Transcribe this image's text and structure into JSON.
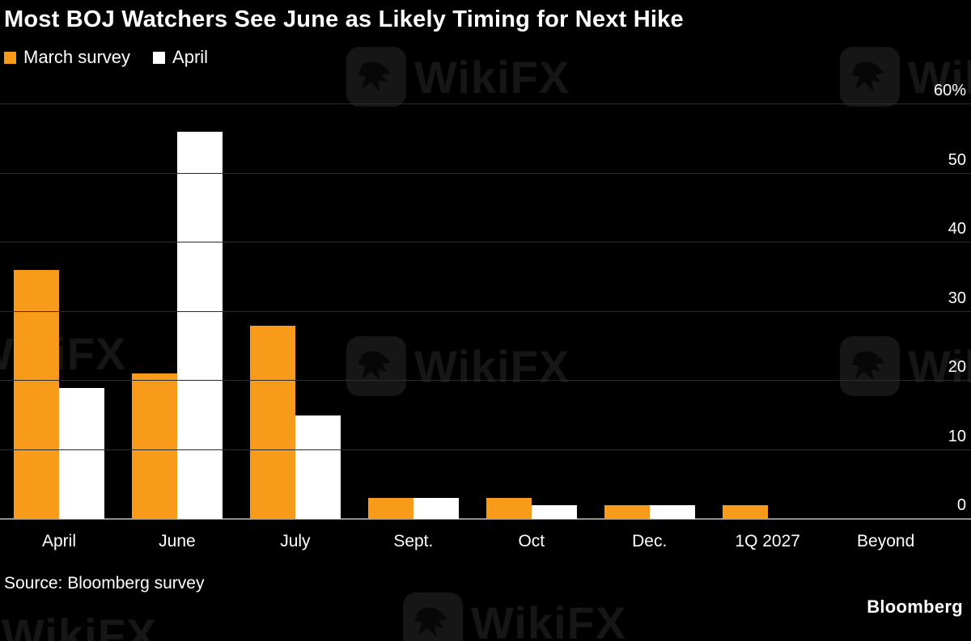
{
  "title": "Most BOJ Watchers See June as Likely Timing for Next Hike",
  "legend": [
    {
      "label": "March survey",
      "color": "#f89b1b"
    },
    {
      "label": "April",
      "color": "#ffffff"
    }
  ],
  "source": "Source: Bloomberg survey",
  "brand": "Bloomberg",
  "watermark_text": "WikiFX",
  "chart_data": {
    "type": "bar",
    "title": "Most BOJ Watchers See June as Likely Timing for Next Hike",
    "categories": [
      "April",
      "June",
      "July",
      "Sept.",
      "Oct",
      "Dec.",
      "1Q 2027",
      "Beyond"
    ],
    "series": [
      {
        "name": "March survey",
        "color": "#f89b1b",
        "values": [
          36,
          21,
          28,
          3,
          3,
          2,
          2,
          0
        ]
      },
      {
        "name": "April",
        "color": "#ffffff",
        "values": [
          19,
          56,
          15,
          3,
          2,
          2,
          0,
          0
        ]
      }
    ],
    "xlabel": "",
    "ylabel": "",
    "ylim": [
      0,
      60
    ],
    "yticks": [
      {
        "value": 0,
        "label": "0"
      },
      {
        "value": 10,
        "label": "10"
      },
      {
        "value": 20,
        "label": "20"
      },
      {
        "value": 30,
        "label": "30"
      },
      {
        "value": 40,
        "label": "40"
      },
      {
        "value": 50,
        "label": "50"
      },
      {
        "value": 60,
        "label": "60%"
      }
    ],
    "grid": "horizontal",
    "legend_position": "top-left",
    "background": "#000000"
  }
}
